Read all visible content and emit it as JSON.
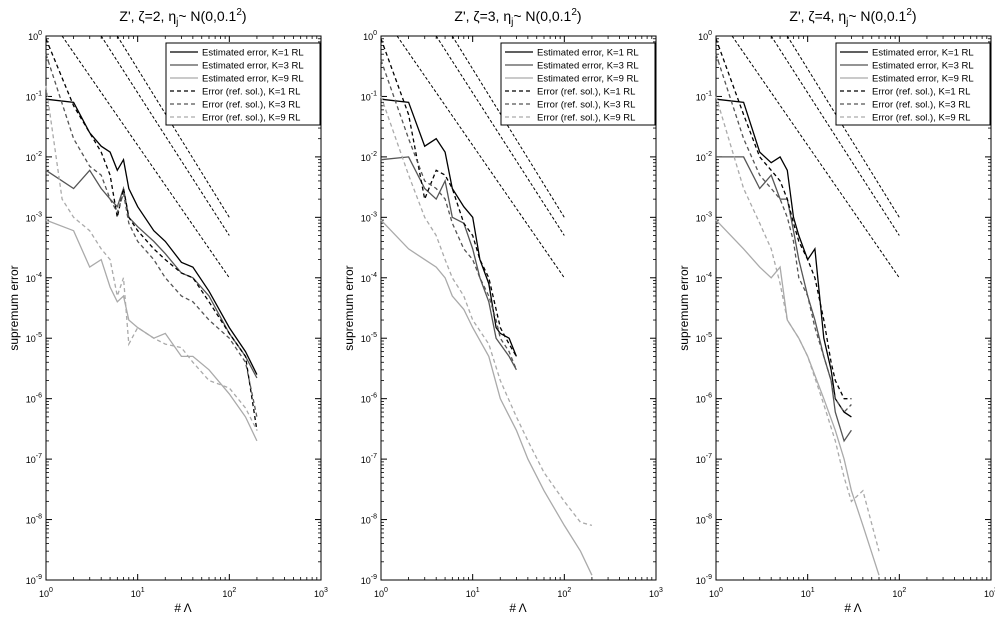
{
  "figure": {
    "panel_titles": [
      "Z', ζ=2, η",
      "Z', ζ=3, η",
      "Z', ζ=4, η"
    ],
    "title_sub": "j",
    "title_tail": "~ N(0,0.1",
    "title_sup": "2",
    "title_close": ")"
  },
  "chart_data": [
    {
      "type": "line",
      "title": "Z', ζ=2, ηj~ N(0,0.1²)",
      "xlabel": "# Λ",
      "ylabel": "supremum error",
      "x_scale": "log",
      "y_scale": "log",
      "xlim": [
        1,
        1000
      ],
      "ylim": [
        1e-09,
        1
      ],
      "xticks": [
        "10^0",
        "10^1",
        "10^2",
        "10^3"
      ],
      "yticks": [
        "10^-9",
        "10^-8",
        "10^-7",
        "10^-6",
        "10^-5",
        "10^-4",
        "10^-3",
        "10^-2",
        "10^-1",
        "10^0"
      ],
      "legend_position": "top-right",
      "series": [
        {
          "name": "Estimated error, K=1 RL",
          "style": "solid",
          "color": "#000000",
          "x": [
            1,
            2,
            3,
            4,
            5,
            6,
            7,
            8,
            10,
            15,
            20,
            30,
            40,
            60,
            100,
            150,
            200
          ],
          "y": [
            0.09,
            0.08,
            0.025,
            0.015,
            0.012,
            0.006,
            0.009,
            0.003,
            0.0015,
            0.0006,
            0.0004,
            0.00018,
            0.00015,
            6e-05,
            1.5e-05,
            6e-06,
            2.5e-06
          ]
        },
        {
          "name": "Estimated error, K=3 RL",
          "style": "solid",
          "color": "#555555",
          "x": [
            1,
            2,
            3,
            4,
            5,
            6,
            7,
            8,
            10,
            15,
            20,
            30,
            40,
            60,
            100,
            150,
            200
          ],
          "y": [
            0.006,
            0.003,
            0.006,
            0.003,
            0.002,
            0.0015,
            0.003,
            0.001,
            0.0007,
            0.0004,
            0.00025,
            0.00012,
            0.0001,
            5e-05,
            1.2e-05,
            5e-06,
            2.2e-06
          ]
        },
        {
          "name": "Estimated error, K=9 RL",
          "style": "solid",
          "color": "#aaaaaa",
          "x": [
            1,
            2,
            3,
            4,
            5,
            6,
            7,
            8,
            10,
            15,
            20,
            30,
            40,
            60,
            100,
            150,
            200
          ],
          "y": [
            0.0009,
            0.0006,
            0.00015,
            0.0002,
            7e-05,
            4e-05,
            5e-05,
            2e-05,
            1.5e-05,
            1e-05,
            1.2e-05,
            5e-06,
            5e-06,
            3e-06,
            1.2e-06,
            5e-07,
            2e-07
          ]
        },
        {
          "name": "Error (ref. sol.), K=1 RL",
          "style": "dashed",
          "color": "#000000",
          "x": [
            1,
            2,
            3,
            4,
            5,
            6,
            7,
            8,
            10,
            15,
            20,
            30,
            40,
            60,
            100,
            150,
            200
          ],
          "y": [
            0.9,
            0.07,
            0.025,
            0.012,
            0.005,
            0.001,
            0.003,
            0.001,
            0.0006,
            0.0003,
            0.0002,
            0.00012,
            0.0001,
            4e-05,
            1.2e-05,
            5e-06,
            3e-07
          ]
        },
        {
          "name": "Error (ref. sol.), K=3 RL",
          "style": "dashed",
          "color": "#555555",
          "x": [
            1,
            2,
            3,
            4,
            5,
            6,
            7,
            8,
            10,
            15,
            20,
            30,
            40,
            60,
            100,
            150,
            200
          ],
          "y": [
            0.5,
            0.02,
            0.007,
            0.005,
            0.002,
            0.0012,
            0.0025,
            0.0008,
            0.0004,
            0.0002,
            0.0001,
            5e-05,
            4e-05,
            2e-05,
            1e-05,
            4e-06,
            5e-07
          ]
        },
        {
          "name": "Error (ref. sol.), K=9 RL",
          "style": "dashed",
          "color": "#aaaaaa",
          "x": [
            1,
            1.5,
            2,
            3,
            4,
            5,
            6,
            7,
            8,
            10,
            15,
            20,
            30,
            40,
            60,
            100,
            150,
            200
          ],
          "y": [
            0.15,
            0.002,
            0.001,
            0.0006,
            0.0003,
            0.0002,
            5e-05,
            0.0001,
            8e-06,
            1.5e-05,
            1e-05,
            8e-06,
            7e-06,
            4e-06,
            2e-06,
            1.5e-06,
            7e-07,
            3e-07
          ]
        }
      ],
      "reference_lines": [
        {
          "x": [
            1.5,
            100
          ],
          "y": [
            1.0,
            0.0001
          ]
        },
        {
          "x": [
            4,
            100
          ],
          "y": [
            1.0,
            0.0005
          ]
        },
        {
          "x": [
            6,
            100
          ],
          "y": [
            1.0,
            0.001
          ]
        }
      ]
    },
    {
      "type": "line",
      "title": "Z', ζ=3, ηj~ N(0,0.1²)",
      "xlabel": "# Λ",
      "ylabel": "supremum error",
      "x_scale": "log",
      "y_scale": "log",
      "xlim": [
        1,
        1000
      ],
      "ylim": [
        1e-09,
        1
      ],
      "xticks": [
        "10^0",
        "10^1",
        "10^2",
        "10^3"
      ],
      "yticks": [
        "10^-9",
        "10^-8",
        "10^-7",
        "10^-6",
        "10^-5",
        "10^-4",
        "10^-3",
        "10^-2",
        "10^-1",
        "10^0"
      ],
      "legend_position": "top-right",
      "series": [
        {
          "name": "Estimated error, K=1 RL",
          "style": "solid",
          "color": "#000000",
          "x": [
            1,
            2,
            3,
            4,
            5,
            6,
            8,
            10,
            12,
            15,
            18,
            20,
            25,
            30
          ],
          "y": [
            0.09,
            0.08,
            0.015,
            0.02,
            0.012,
            0.003,
            0.0015,
            0.001,
            0.0002,
            8e-05,
            1.5e-05,
            1.2e-05,
            1e-05,
            5e-06
          ]
        },
        {
          "name": "Estimated error, K=3 RL",
          "style": "solid",
          "color": "#555555",
          "x": [
            1,
            2,
            3,
            4,
            5,
            6,
            8,
            10,
            12,
            15,
            18,
            20,
            25,
            30
          ],
          "y": [
            0.009,
            0.01,
            0.003,
            0.002,
            0.004,
            0.001,
            0.0008,
            0.0003,
            0.0001,
            4e-05,
            1e-05,
            8e-06,
            5e-06,
            3e-06
          ]
        },
        {
          "name": "Estimated error, K=9 RL",
          "style": "solid",
          "color": "#aaaaaa",
          "x": [
            1,
            2,
            3,
            4,
            5,
            6,
            8,
            10,
            15,
            20,
            30,
            40,
            60,
            100,
            150,
            200
          ],
          "y": [
            0.0009,
            0.0003,
            0.0002,
            0.00015,
            0.0001,
            5e-05,
            3e-05,
            1.5e-05,
            5e-06,
            1e-06,
            3e-07,
            1e-07,
            3e-08,
            8e-09,
            3e-09,
            1.2e-09
          ]
        },
        {
          "name": "Error (ref. sol.), K=1 RL",
          "style": "dashed",
          "color": "#000000",
          "x": [
            1,
            2,
            3,
            4,
            5,
            6,
            8,
            10,
            12,
            15,
            18,
            20,
            25,
            30
          ],
          "y": [
            0.9,
            0.05,
            0.002,
            0.006,
            0.005,
            0.003,
            0.0008,
            0.0005,
            0.0002,
            0.0001,
            3e-05,
            1.5e-05,
            8e-06,
            5e-06
          ]
        },
        {
          "name": "Error (ref. sol.), K=3 RL",
          "style": "dashed",
          "color": "#555555",
          "x": [
            1,
            2,
            3,
            4,
            5,
            6,
            8,
            10,
            12,
            15,
            18,
            20,
            25,
            30
          ],
          "y": [
            0.4,
            0.02,
            0.004,
            0.003,
            0.002,
            0.0008,
            0.0003,
            0.0002,
            0.0001,
            5e-05,
            2e-05,
            1e-05,
            6e-06,
            3e-06
          ]
        },
        {
          "name": "Error (ref. sol.), K=9 RL",
          "style": "dashed",
          "color": "#aaaaaa",
          "x": [
            1,
            2,
            3,
            4,
            5,
            6,
            8,
            10,
            15,
            20,
            30,
            40,
            60,
            100,
            150,
            200
          ],
          "y": [
            0.1,
            0.005,
            0.001,
            0.0005,
            0.0002,
            0.0001,
            5e-05,
            2e-05,
            8e-06,
            2e-06,
            5e-07,
            2e-07,
            6e-08,
            2e-08,
            9e-09,
            8e-09
          ]
        }
      ],
      "reference_lines": [
        {
          "x": [
            1.5,
            100
          ],
          "y": [
            1.0,
            0.0001
          ]
        },
        {
          "x": [
            4,
            100
          ],
          "y": [
            1.0,
            0.0005
          ]
        },
        {
          "x": [
            6,
            100
          ],
          "y": [
            1.0,
            0.001
          ]
        }
      ]
    },
    {
      "type": "line",
      "title": "Z', ζ=4, ηj~ N(0,0.1²)",
      "xlabel": "# Λ",
      "ylabel": "supremum error",
      "x_scale": "log",
      "y_scale": "log",
      "xlim": [
        1,
        1000
      ],
      "ylim": [
        1e-09,
        1
      ],
      "xticks": [
        "10^0",
        "10^1",
        "10^2",
        "10^3"
      ],
      "yticks": [
        "10^-9",
        "10^-8",
        "10^-7",
        "10^-6",
        "10^-5",
        "10^-4",
        "10^-3",
        "10^-2",
        "10^-1",
        "10^0"
      ],
      "legend_position": "top-right",
      "series": [
        {
          "name": "Estimated error, K=1 RL",
          "style": "solid",
          "color": "#000000",
          "x": [
            1,
            2,
            3,
            4,
            5,
            6,
            7,
            8,
            10,
            12,
            15,
            18,
            20,
            25,
            30
          ],
          "y": [
            0.09,
            0.08,
            0.012,
            0.008,
            0.01,
            0.006,
            0.001,
            0.0005,
            0.0002,
            0.0003,
            1e-05,
            3e-06,
            1e-06,
            6e-07,
            5e-07
          ]
        },
        {
          "name": "Estimated error, K=3 RL",
          "style": "solid",
          "color": "#555555",
          "x": [
            1,
            2,
            3,
            4,
            5,
            6,
            7,
            8,
            10,
            12,
            15,
            18,
            20,
            25,
            30
          ],
          "y": [
            0.01,
            0.01,
            0.003,
            0.005,
            0.002,
            0.002,
            0.0006,
            0.0002,
            5e-05,
            2e-05,
            5e-06,
            2e-06,
            6e-07,
            2e-07,
            3e-07
          ]
        },
        {
          "name": "Estimated error, K=9 RL",
          "style": "solid",
          "color": "#aaaaaa",
          "x": [
            1,
            2,
            3,
            4,
            5,
            6,
            8,
            10,
            15,
            20,
            25,
            30,
            40,
            60
          ],
          "y": [
            0.0009,
            0.0003,
            0.00015,
            0.0001,
            0.00015,
            2e-05,
            1e-05,
            5e-06,
            1e-06,
            3e-07,
            1e-07,
            3e-08,
            8e-09,
            1.2e-09
          ]
        },
        {
          "name": "Error (ref. sol.), K=1 RL",
          "style": "dashed",
          "color": "#000000",
          "x": [
            1,
            2,
            3,
            4,
            5,
            6,
            7,
            8,
            10,
            12,
            15,
            18,
            20,
            25,
            30
          ],
          "y": [
            0.9,
            0.05,
            0.01,
            0.006,
            0.004,
            0.002,
            0.0008,
            0.0004,
            0.0002,
            0.0001,
            2e-05,
            4e-06,
            2e-06,
            1e-06,
            1e-06
          ]
        },
        {
          "name": "Error (ref. sol.), K=3 RL",
          "style": "dashed",
          "color": "#555555",
          "x": [
            1,
            2,
            3,
            4,
            5,
            6,
            7,
            8,
            10,
            12,
            15,
            18,
            20,
            25,
            30
          ],
          "y": [
            0.5,
            0.02,
            0.005,
            0.003,
            0.002,
            0.001,
            0.0004,
            0.0001,
            5e-05,
            1.5e-05,
            5e-06,
            2e-06,
            1e-06,
            6e-07,
            8e-07
          ]
        },
        {
          "name": "Error (ref. sol.), K=9 RL",
          "style": "dashed",
          "color": "#aaaaaa",
          "x": [
            1,
            2,
            3,
            4,
            5,
            6,
            8,
            10,
            15,
            20,
            25,
            30,
            40,
            60
          ],
          "y": [
            0.1,
            0.003,
            0.0008,
            0.0003,
            8e-05,
            2e-05,
            1e-05,
            5e-06,
            8e-07,
            2e-07,
            5e-08,
            2e-08,
            3e-08,
            3e-09
          ]
        }
      ],
      "reference_lines": [
        {
          "x": [
            1.5,
            100
          ],
          "y": [
            1.0,
            0.0001
          ]
        },
        {
          "x": [
            4,
            100
          ],
          "y": [
            1.0,
            0.0005
          ]
        },
        {
          "x": [
            6,
            100
          ],
          "y": [
            1.0,
            0.001
          ]
        }
      ]
    }
  ]
}
